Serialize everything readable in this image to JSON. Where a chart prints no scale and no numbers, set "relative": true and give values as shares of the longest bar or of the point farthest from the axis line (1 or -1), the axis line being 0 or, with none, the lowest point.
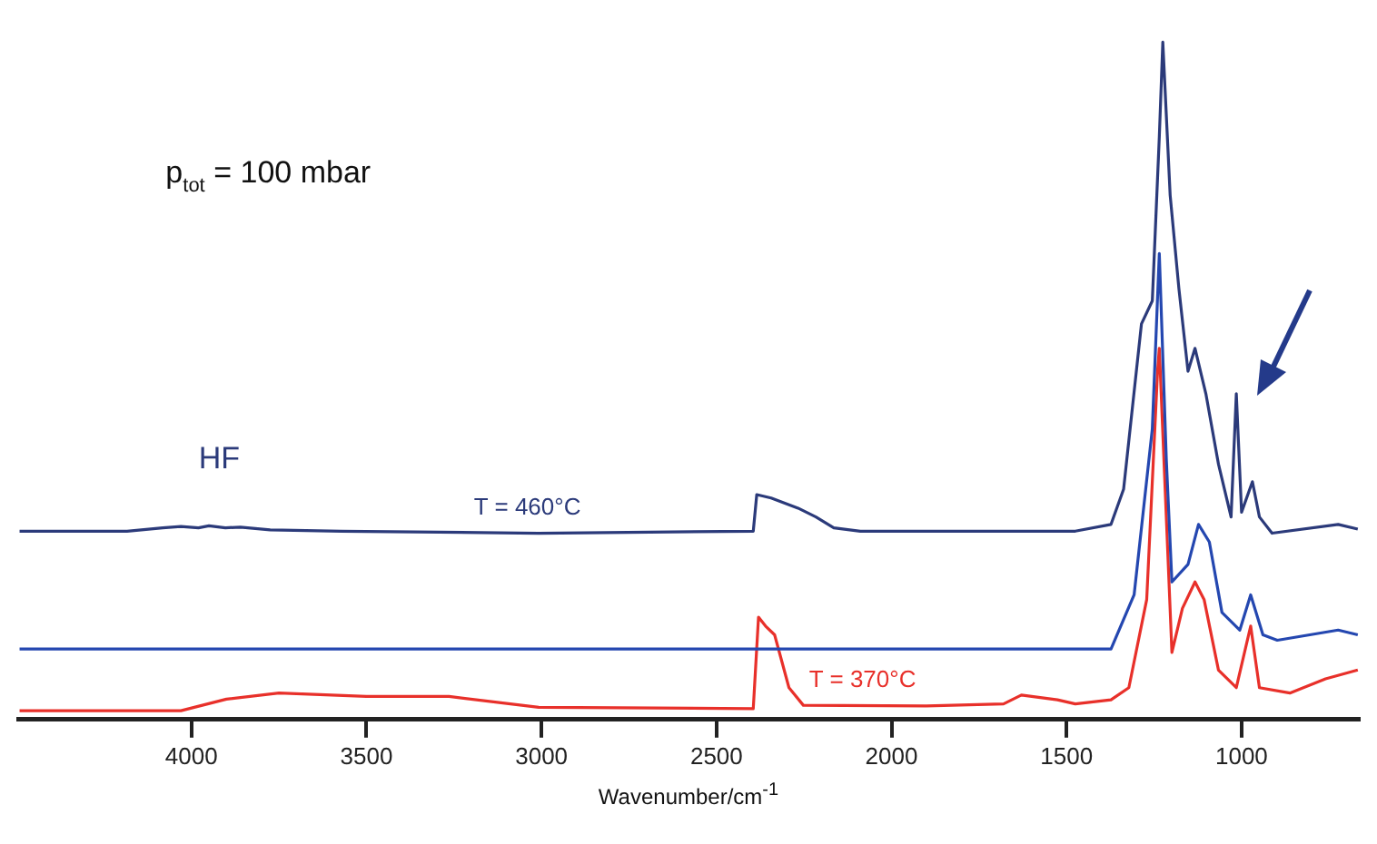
{
  "chart_data": {
    "type": "line",
    "relative": true,
    "xlabel": "Wavenumber/cm$^{-1}$",
    "xlim": [
      4495,
      665
    ],
    "xticks": [
      4000,
      3500,
      3000,
      2500,
      2000,
      1500,
      1000
    ],
    "grid": false,
    "legend": false,
    "marker": "none",
    "line_style": "solid",
    "series": [
      {
        "name": "T = 460°C",
        "color": "#2b3a7a",
        "x": [
          4491,
          4184,
          4082,
          4030,
          3980,
          3950,
          3903,
          3860,
          3775,
          3571,
          3008,
          2395,
          2385,
          2344,
          2267,
          2216,
          2165,
          2089,
          1475,
          1373,
          1337,
          1286,
          1255,
          1235,
          1225,
          1204,
          1179,
          1153,
          1133,
          1102,
          1066,
          1030,
          1015,
          1000,
          969,
          949,
          913,
          724,
          668
        ],
        "values": [
          0.278,
          0.278,
          0.283,
          0.285,
          0.283,
          0.286,
          0.283,
          0.284,
          0.28,
          0.278,
          0.275,
          0.278,
          0.332,
          0.327,
          0.312,
          0.299,
          0.283,
          0.278,
          0.278,
          0.288,
          0.34,
          0.584,
          0.618,
          0.86,
          1.0,
          0.774,
          0.636,
          0.514,
          0.548,
          0.481,
          0.377,
          0.299,
          0.481,
          0.306,
          0.351,
          0.299,
          0.275,
          0.288,
          0.281
        ]
      },
      {
        "color": "#2447b0",
        "x": [
          4491,
          3000,
          2000,
          1475,
          1373,
          1307,
          1255,
          1235,
          1215,
          1199,
          1153,
          1123,
          1092,
          1056,
          1005,
          974,
          939,
          898,
          724,
          668
        ],
        "values": [
          0.104,
          0.104,
          0.104,
          0.104,
          0.104,
          0.184,
          0.429,
          0.688,
          0.384,
          0.203,
          0.229,
          0.288,
          0.262,
          0.158,
          0.132,
          0.184,
          0.125,
          0.117,
          0.132,
          0.125
        ]
      },
      {
        "name": "T = 370°C",
        "color": "#e8302a",
        "x": [
          4491,
          4030,
          3900,
          3750,
          3500,
          3264,
          3008,
          2395,
          2380,
          2360,
          2334,
          2293,
          2252,
          1900,
          1680,
          1629,
          1526,
          1475,
          1373,
          1322,
          1271,
          1240,
          1235,
          1199,
          1169,
          1133,
          1107,
          1066,
          1015,
          974,
          949,
          862,
          760,
          668
        ],
        "values": [
          0.013,
          0.013,
          0.03,
          0.039,
          0.034,
          0.034,
          0.018,
          0.016,
          0.151,
          0.138,
          0.125,
          0.047,
          0.021,
          0.02,
          0.023,
          0.036,
          0.029,
          0.023,
          0.029,
          0.047,
          0.177,
          0.514,
          0.548,
          0.099,
          0.164,
          0.203,
          0.177,
          0.073,
          0.047,
          0.138,
          0.047,
          0.039,
          0.06,
          0.073
        ]
      }
    ],
    "annotations": [
      "p$_{tot}$ = 100 mbar",
      "HF"
    ]
  }
}
